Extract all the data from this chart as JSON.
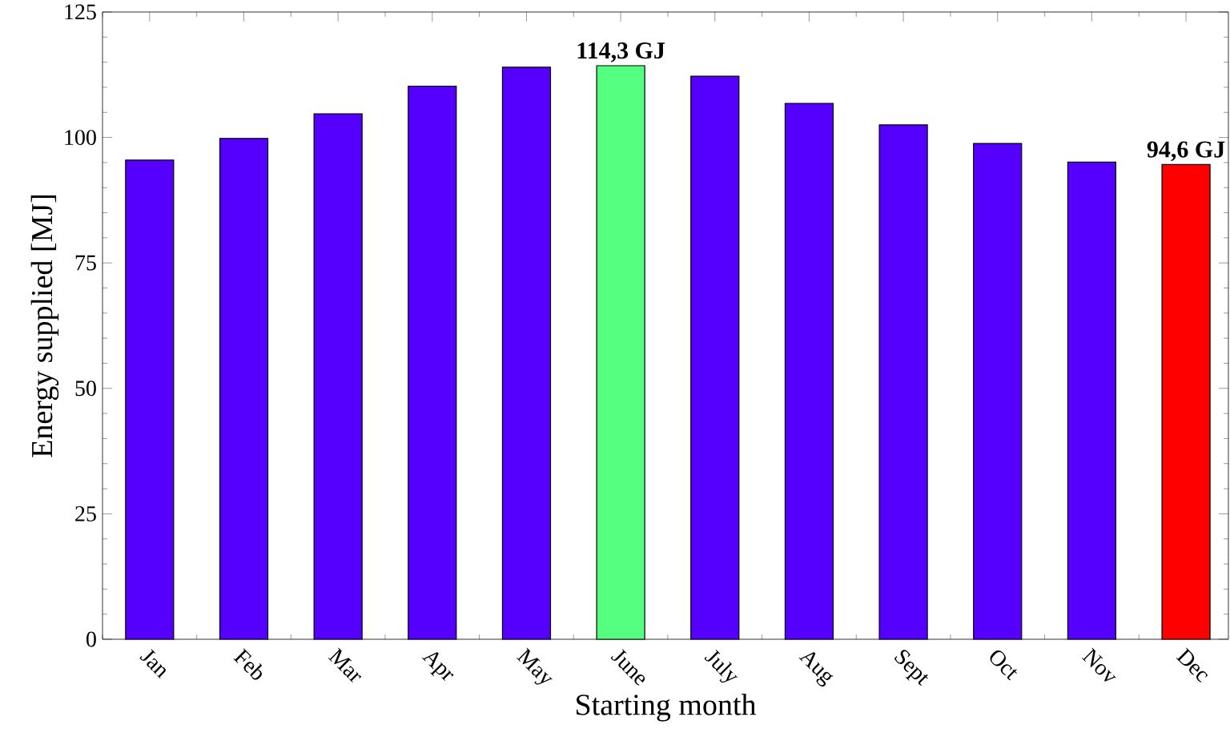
{
  "chart_data": {
    "type": "bar",
    "xlabel": "Starting month",
    "ylabel": "Energy supplied [MJ]",
    "categories": [
      "Jan",
      "Feb",
      "Mar",
      "Apr",
      "May",
      "June",
      "July",
      "Aug",
      "Sept",
      "Oct",
      "Nov",
      "Dec"
    ],
    "values": [
      95.5,
      99.8,
      104.7,
      110.2,
      114.0,
      114.3,
      112.2,
      106.8,
      102.5,
      98.8,
      95.1,
      94.6
    ],
    "colors": [
      "#5500ff",
      "#5500ff",
      "#5500ff",
      "#5500ff",
      "#5500ff",
      "#55ff7f",
      "#5500ff",
      "#5500ff",
      "#5500ff",
      "#5500ff",
      "#5500ff",
      "#ff0000"
    ],
    "value_labels": [
      null,
      null,
      null,
      null,
      null,
      "114,3 GJ",
      null,
      null,
      null,
      null,
      null,
      "94,6 GJ"
    ],
    "ylim": [
      0,
      125
    ],
    "yticks": [
      0,
      25,
      50,
      75,
      100,
      125
    ]
  }
}
